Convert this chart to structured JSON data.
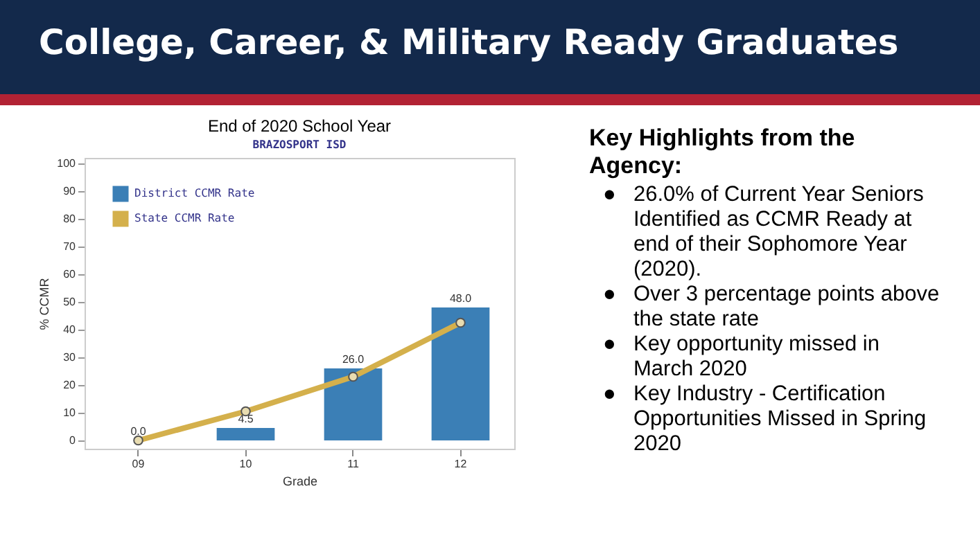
{
  "chart_data": {
    "type": "bar",
    "title": "College, Career, & Military Ready Graduates",
    "subtitle": "End of 2020 School Year",
    "annotations": [
      "BRAZOSPORT ISD",
      "Key Highlights from the Agency:",
      "● 26.0% of Current Year Seniors Identified as CCMR Ready at end of their Sophomore Year (2020).",
      "● Over 3 percentage points above the state rate",
      "● Key opportunity missed in March 2020",
      "● Key Industry - Certification Opportunities Missed in Spring 2020"
    ],
    "xlabel": "Grade",
    "ylabel": "% CCMR",
    "categories": [
      "09",
      "10",
      "11",
      "12"
    ],
    "series": [
      {
        "name": "District CCMR Rate",
        "color": "#3b7fb6",
        "values": [
          0,
          4.5,
          26,
          48
        ],
        "value_labels": [
          "0.0",
          "4.5",
          "26.0",
          "48.0"
        ]
      },
      {
        "name": "State CCMR Rate",
        "type": "line",
        "color": "#d4b04c",
        "values": [
          0,
          10.5,
          23,
          42.5
        ],
        "marker": "circle",
        "line_style": "solid"
      }
    ],
    "ylim": [
      -3,
      102
    ],
    "yticks": [
      0,
      10,
      20,
      30,
      40,
      50,
      60,
      70,
      80,
      90,
      100
    ],
    "grid": false,
    "legend": "top left"
  }
}
